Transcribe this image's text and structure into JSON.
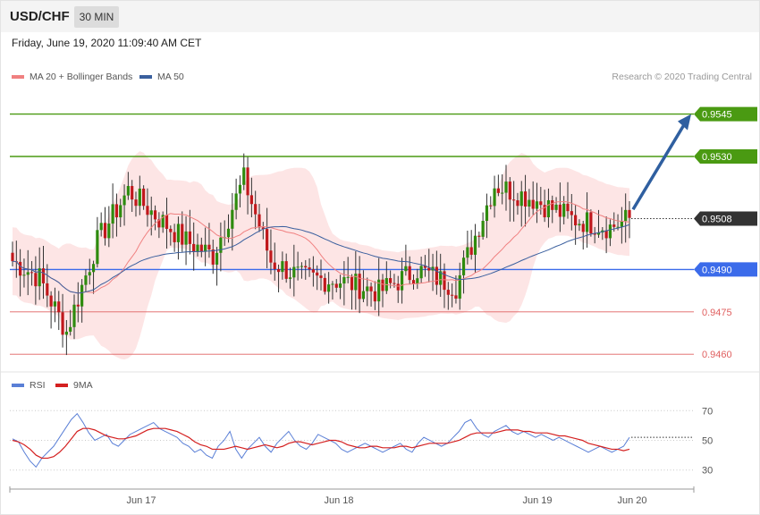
{
  "header": {
    "symbol": "USD/CHF",
    "timeframe": "30 MIN"
  },
  "datetime": "Friday, June 19, 2020 11:09:40 AM CET",
  "legend": {
    "ma20_label": "MA 20 + Bollinger Bands",
    "ma50_label": "MA 50",
    "ma20_color": "#f08080",
    "ma50_color": "#3a5f9e"
  },
  "copyright": "Research © 2020 Trading Central",
  "colors": {
    "resistance": "#4a9a12",
    "pivot": "#3b6bea",
    "support": "#e06060",
    "current": "#333333",
    "bull": "#2e8b0e",
    "bear": "#c0181c",
    "band": "#fde0e0",
    "arrow": "#2f5fa0"
  },
  "chart_data": [
    {
      "type": "candlestick",
      "x_ticks": [
        "Jun 17",
        "Jun 18",
        "Jun 19",
        "Jun 20"
      ],
      "ylim": [
        0.9455,
        0.9555
      ],
      "levels": [
        {
          "name": "resistance-2",
          "value": "0.9545",
          "kind": "resistance"
        },
        {
          "name": "resistance-1",
          "value": "0.9530",
          "kind": "resistance"
        },
        {
          "name": "current",
          "value": "0.9508",
          "kind": "current"
        },
        {
          "name": "pivot",
          "value": "0.9490",
          "kind": "pivot"
        },
        {
          "name": "support-1",
          "value": "0.9475",
          "kind": "support"
        },
        {
          "name": "support-2",
          "value": "0.9460",
          "kind": "support"
        }
      ],
      "arrow_target": 0.9545
    },
    {
      "type": "line",
      "series": [
        {
          "name": "RSI"
        },
        {
          "name": "9MA"
        }
      ],
      "y_ticks": [
        "70",
        "50",
        "30"
      ],
      "ylim": [
        25,
        78
      ],
      "rsi_color": "#5a7fd6",
      "ma_color": "#d42020",
      "rsi_values": [
        51,
        49,
        42,
        36,
        32,
        38,
        42,
        46,
        52,
        58,
        64,
        68,
        62,
        55,
        50,
        52,
        54,
        48,
        46,
        50,
        54,
        56,
        58,
        60,
        62,
        58,
        56,
        54,
        52,
        48,
        46,
        42,
        44,
        40,
        38,
        46,
        50,
        56,
        44,
        38,
        44,
        48,
        52,
        46,
        42,
        48,
        52,
        56,
        50,
        46,
        44,
        48,
        54,
        52,
        50,
        48,
        44,
        42,
        44,
        46,
        48,
        46,
        44,
        42,
        44,
        46,
        48,
        44,
        42,
        48,
        52,
        50,
        48,
        46,
        48,
        52,
        56,
        62,
        64,
        58,
        54,
        52,
        56,
        58,
        60,
        56,
        54,
        56,
        54,
        52,
        54,
        52,
        50,
        52,
        50,
        48,
        46,
        44,
        42,
        44,
        46,
        44,
        42,
        44,
        46,
        52
      ],
      "ma_values": [
        50,
        49,
        47,
        44,
        40,
        38,
        38,
        39,
        42,
        46,
        51,
        56,
        58,
        58,
        57,
        55,
        53,
        52,
        51,
        51,
        52,
        53,
        55,
        57,
        58,
        58,
        58,
        57,
        56,
        54,
        52,
        49,
        47,
        46,
        44,
        44,
        44,
        45,
        46,
        45,
        44,
        45,
        46,
        47,
        46,
        45,
        46,
        48,
        49,
        49,
        48,
        47,
        48,
        49,
        50,
        50,
        49,
        47,
        46,
        45,
        45,
        46,
        46,
        45,
        45,
        45,
        46,
        46,
        45,
        46,
        47,
        48,
        48,
        48,
        48,
        49,
        50,
        52,
        54,
        55,
        55,
        55,
        55,
        56,
        57,
        57,
        57,
        56,
        56,
        55,
        55,
        55,
        54,
        53,
        53,
        52,
        51,
        50,
        48,
        47,
        46,
        45,
        44,
        44,
        43,
        44
      ]
    }
  ]
}
